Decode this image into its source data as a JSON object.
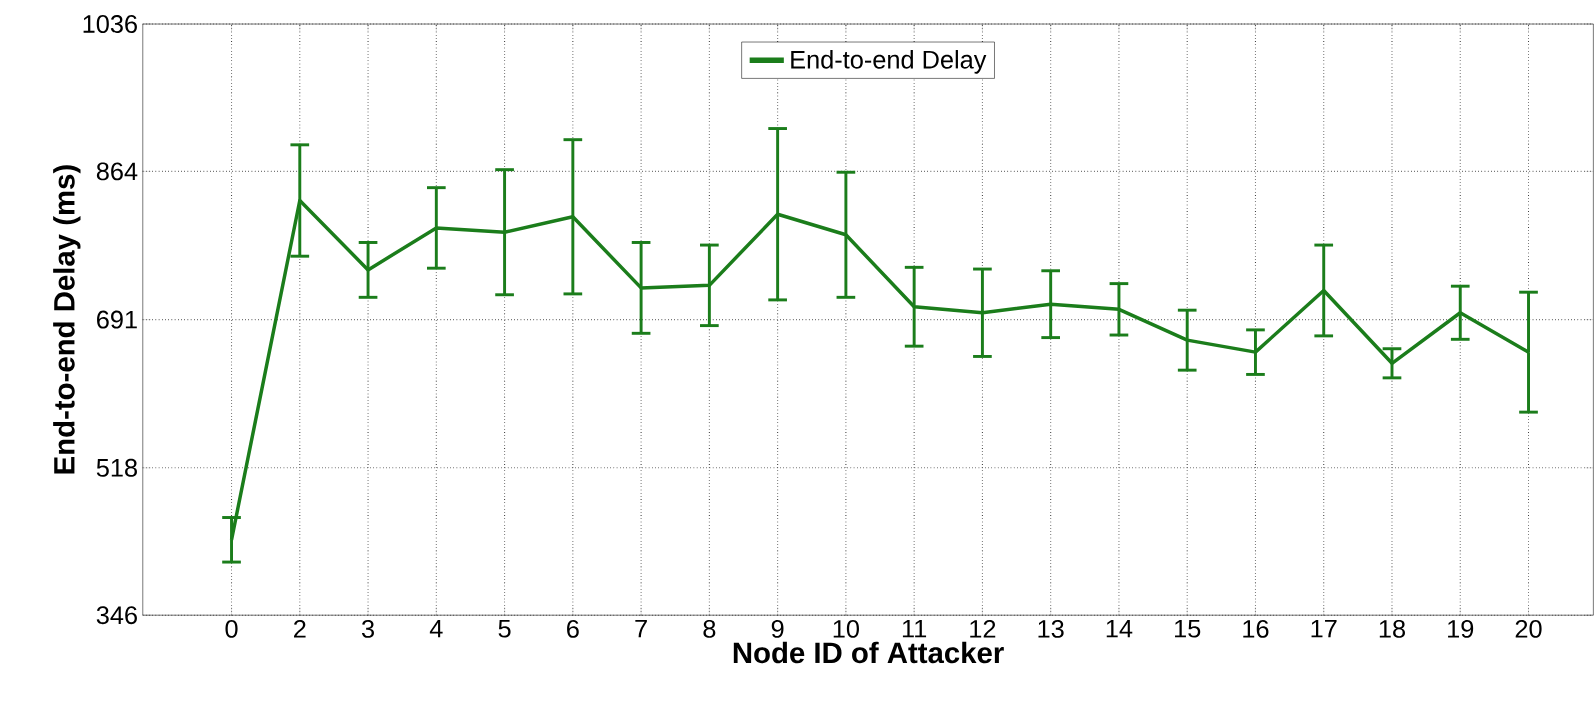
{
  "chart_data": {
    "type": "line",
    "xlabel": "Node ID of Attacker",
    "ylabel": "End-to-end Delay (ms)",
    "categories": [
      "0",
      "2",
      "3",
      "4",
      "5",
      "6",
      "7",
      "8",
      "9",
      "10",
      "11",
      "12",
      "13",
      "14",
      "15",
      "16",
      "17",
      "18",
      "19",
      "20"
    ],
    "series": [
      {
        "name": "End-to-end Delay",
        "color": "#1b7d1b",
        "values": [
          434,
          830,
          749,
          798,
          793,
          811,
          728,
          731,
          814,
          790,
          706,
          699,
          709,
          703,
          667,
          653,
          725,
          640,
          699,
          653
        ],
        "errors": [
          26,
          65,
          32,
          47,
          73,
          90,
          53,
          47,
          100,
          73,
          46,
          51,
          39,
          30,
          35,
          26,
          53,
          17,
          31,
          70
        ]
      }
    ],
    "ylim": [
      346,
      1036
    ],
    "yticks": [
      346,
      518,
      691,
      864,
      1036
    ],
    "grid": true,
    "legend": "top",
    "marker": "none",
    "line_style": "solid"
  }
}
